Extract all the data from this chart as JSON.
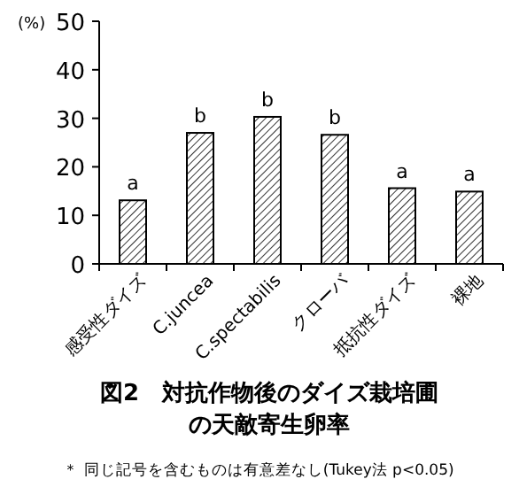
{
  "chart_data": {
    "type": "bar",
    "title": "図2　対抗作物後のダイズ栽培圃の天敵寄生卵率",
    "ylabel": "(%)",
    "categories": [
      "感受性ダイズ",
      "C.juncea",
      "C.spectabilis",
      "クローバ",
      "抵抗性ダイズ",
      "裸地"
    ],
    "values": [
      13.1,
      27.0,
      30.3,
      26.6,
      15.6,
      14.9
    ],
    "color": "#000000",
    "ylim": [
      0,
      50
    ],
    "yticks": [
      0,
      10,
      20,
      30,
      40,
      50
    ],
    "grid": false,
    "annotations": [
      {
        "text": "a",
        "x": "感受性ダイズ",
        "y": 13.1
      },
      {
        "text": "b",
        "x": "C.juncea",
        "y": 27.0
      },
      {
        "text": "b",
        "x": "C.spectabilis",
        "y": 30.3
      },
      {
        "text": "b",
        "x": "クローバ",
        "y": 26.6
      },
      {
        "text": "a",
        "x": "抵抗性ダイズ",
        "y": 15.6
      },
      {
        "text": "a",
        "x": "裸地",
        "y": 14.9
      },
      "＊ 同じ記号を含むものは有意差なし(Tukey法 p<0.05)"
    ]
  }
}
